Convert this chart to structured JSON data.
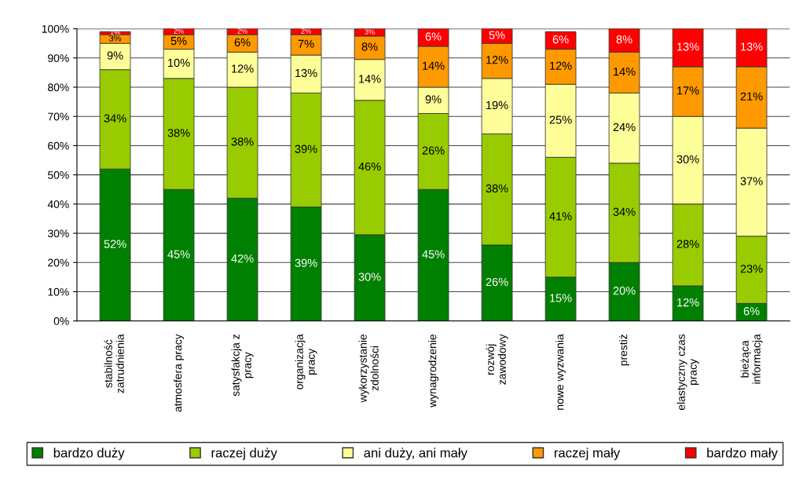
{
  "chart_data": {
    "type": "bar",
    "stacked": true,
    "grid": "y",
    "legend": "bottom",
    "categories": [
      "stabilność\nzatrudnienia",
      "atmosfera pracy",
      "satysfakcja z\npracy",
      "organizacja\npracy",
      "wykorzystanie\nzdolności",
      "wynagrodzenie",
      "rozwój\nzawodowy",
      "nowe wyzwania",
      "prestiż",
      "elastyczny czas\npracy",
      "bieżąca\ninformacja"
    ],
    "ylim": [
      0,
      100
    ],
    "yticks": [
      {
        "value": 0,
        "label": "0%"
      },
      {
        "value": 10,
        "label": "10%"
      },
      {
        "value": 20,
        "label": "20%"
      },
      {
        "value": 30,
        "label": "30%"
      },
      {
        "value": 40,
        "label": "40%"
      },
      {
        "value": 50,
        "label": "50%"
      },
      {
        "value": 60,
        "label": "60%"
      },
      {
        "value": 70,
        "label": "70%"
      },
      {
        "value": 80,
        "label": "80%"
      },
      {
        "value": 90,
        "label": "90%"
      },
      {
        "value": 100,
        "label": "100%"
      }
    ],
    "series": [
      {
        "name": "bardzo duży",
        "color": "#008000",
        "values": [
          52,
          45,
          42,
          39,
          29.5,
          45,
          26,
          15,
          20,
          12,
          6
        ],
        "value_labels": [
          "52%",
          "45%",
          "42%",
          "39%",
          "30%",
          "45%",
          "26%",
          "15%",
          "20%",
          "12%",
          "6%"
        ]
      },
      {
        "name": "raczej duży",
        "color": "#99cc00",
        "values": [
          34,
          38,
          38,
          39,
          46,
          26,
          38,
          41,
          34,
          28,
          23
        ],
        "value_labels": [
          "34%",
          "38%",
          "38%",
          "39%",
          "46%",
          "26%",
          "38%",
          "41%",
          "34%",
          "28%",
          "23%"
        ]
      },
      {
        "name": "ani duży, ani mały",
        "color": "#ffff99",
        "values": [
          9,
          10,
          12,
          13,
          14,
          9,
          19,
          25,
          24,
          30,
          37
        ],
        "value_labels": [
          "9%",
          "10%",
          "12%",
          "13%",
          "14%",
          "9%",
          "19%",
          "25%",
          "24%",
          "30%",
          "37%"
        ]
      },
      {
        "name": "raczej mały",
        "color": "#ff9900",
        "values": [
          3,
          5,
          6,
          7,
          8,
          14,
          12,
          12,
          14,
          17,
          21
        ],
        "value_labels": [
          "3%",
          "5%",
          "6%",
          "7%",
          "8%",
          "14%",
          "12%",
          "12%",
          "14%",
          "17%",
          "21%"
        ]
      },
      {
        "name": "bardzo mały",
        "color": "#ff0000",
        "values": [
          1,
          2,
          2,
          2,
          2.5,
          6,
          5,
          6,
          8,
          13,
          13
        ],
        "value_labels": [
          "1%",
          "2%",
          "2%",
          "2%",
          "3%",
          "6%",
          "5%",
          "6%",
          "8%",
          "13%",
          "13%"
        ]
      }
    ]
  }
}
